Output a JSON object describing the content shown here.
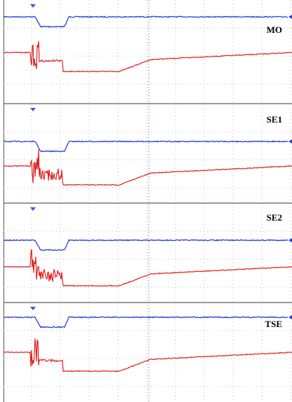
{
  "panels": [
    {
      "label": "MO"
    },
    {
      "label": "SE1"
    },
    {
      "label": "SE2"
    },
    {
      "label": "TSE"
    }
  ]
}
